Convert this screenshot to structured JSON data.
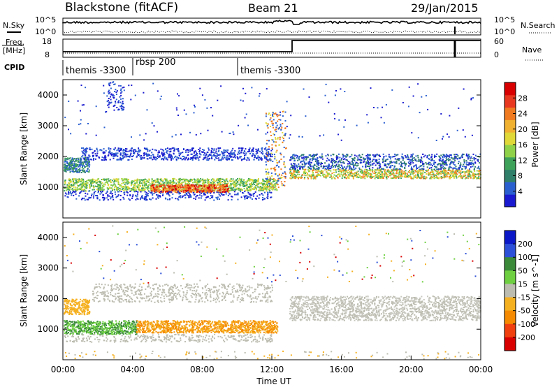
{
  "header": {
    "title": "Blackstone (fitACF)",
    "beam": "Beam 21",
    "date": "29/Jan/2015"
  },
  "noise_panel": {
    "left_label": "N.Sky",
    "right_label": "N.Search",
    "left_ticks": [
      "10^5",
      "10^0"
    ],
    "right_ticks": [
      "10^5",
      "10^0"
    ]
  },
  "freq_panel": {
    "left_label_line1": "Freq.",
    "left_label_line2": "[MHz]",
    "left_ticks": [
      "18",
      "8"
    ],
    "right_label": "Nave",
    "right_ticks": [
      "60",
      "0"
    ]
  },
  "cpid_panel": {
    "label": "CPID",
    "segments": [
      {
        "name": "themis -3300",
        "start": 0
      },
      {
        "name": "rbsp 200",
        "start": 4
      },
      {
        "name": "themis -3300",
        "start": 10
      }
    ]
  },
  "x_axis": {
    "label": "Time UT",
    "ticks": [
      "00:00",
      "04:00",
      "08:00",
      "12:00",
      "16:00",
      "20:00",
      "00:00"
    ],
    "range_hours": [
      0,
      24
    ]
  },
  "chart_data": [
    {
      "type": "heatmap",
      "title": "",
      "quantity": "Power",
      "xlabel": "Time UT",
      "ylabel": "Slant Range [km]",
      "ylim": [
        0,
        4500
      ],
      "y_ticks": [
        1000,
        2000,
        3000,
        4000
      ],
      "colorbar": {
        "label": "Power [dB]",
        "range": [
          0,
          32
        ],
        "ticks": [
          4,
          8,
          12,
          16,
          20,
          24,
          28
        ]
      },
      "description_bands": [
        {
          "time_hours": [
            0,
            12.3
          ],
          "range_km": [
            800,
            1300
          ],
          "value_db": 14
        },
        {
          "time_hours": [
            5,
            9.5
          ],
          "range_km": [
            800,
            1100
          ],
          "value_db": 24
        },
        {
          "time_hours": [
            13,
            24
          ],
          "range_km": [
            1300,
            2100
          ],
          "value_db": 12
        }
      ]
    },
    {
      "type": "heatmap",
      "title": "",
      "quantity": "Velocity",
      "xlabel": "Time UT",
      "ylabel": "Slant Range [km]",
      "ylim": [
        0,
        4500
      ],
      "y_ticks": [
        1000,
        2000,
        3000,
        4000
      ],
      "colorbar": {
        "label": "Velocity [m s^-1]",
        "range": [
          -250,
          250
        ],
        "tick_labels": [
          "200",
          "100",
          "50",
          "15",
          "-15",
          "-50",
          "-100",
          "-200"
        ]
      }
    }
  ],
  "colors": {
    "power_scale": [
      "#1a1ad0",
      "#2a5fd0",
      "#2f7f6a",
      "#3ea25b",
      "#8fd24a",
      "#e0d838",
      "#f0b030",
      "#f07a20",
      "#e83820",
      "#d80000"
    ],
    "velocity_scale": [
      "#0a18c8",
      "#2c50d8",
      "#3a8a3a",
      "#6ed040",
      "#bcbcb0",
      "#f5b020",
      "#f58a00",
      "#f04010",
      "#d80000"
    ]
  }
}
